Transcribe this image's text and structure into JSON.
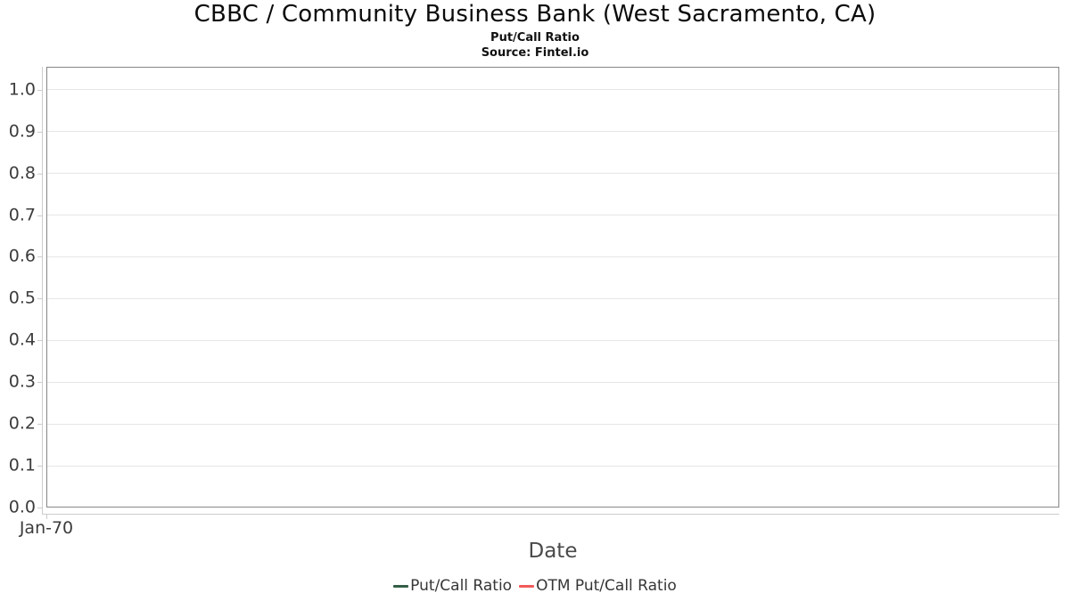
{
  "header": {
    "title": "CBBC / Community Business Bank (West Sacramento, CA)",
    "subtitle": "Put/Call Ratio",
    "source": "Source: Fintel.io"
  },
  "axes": {
    "x_label": "Date",
    "x_tick_labels": [
      "Jan-70"
    ],
    "y_tick_labels": [
      "0.0",
      "0.1",
      "0.2",
      "0.3",
      "0.4",
      "0.5",
      "0.6",
      "0.7",
      "0.8",
      "0.9",
      "1.0"
    ]
  },
  "legend": [
    {
      "label": "Put/Call Ratio",
      "color": "#345e46"
    },
    {
      "label": "OTM Put/Call Ratio",
      "color": "#f25a5a"
    }
  ],
  "colors": {
    "plot_border": "#878787",
    "gridline": "#e6e6e6",
    "axis_line": "#cccccc",
    "tick_label": "#3c3c3c",
    "axis_title": "#4a4a4a"
  },
  "chart_data": {
    "type": "line",
    "title": "CBBC / Community Business Bank (West Sacramento, CA)",
    "subtitle": "Put/Call Ratio",
    "source": "Source: Fintel.io",
    "xlabel": "Date",
    "ylabel": "",
    "x_tick_labels": [
      "Jan-70"
    ],
    "ylim": [
      0,
      1.055
    ],
    "yticks": [
      0,
      0.1,
      0.2,
      0.3,
      0.4,
      0.5,
      0.6,
      0.7,
      0.8,
      0.9,
      1.0
    ],
    "grid": "horizontal",
    "legend_position": "bottom",
    "series": [
      {
        "name": "Put/Call Ratio",
        "color": "#345e46",
        "x": [],
        "y": []
      },
      {
        "name": "OTM Put/Call Ratio",
        "color": "#f25a5a",
        "x": [],
        "y": []
      }
    ]
  }
}
